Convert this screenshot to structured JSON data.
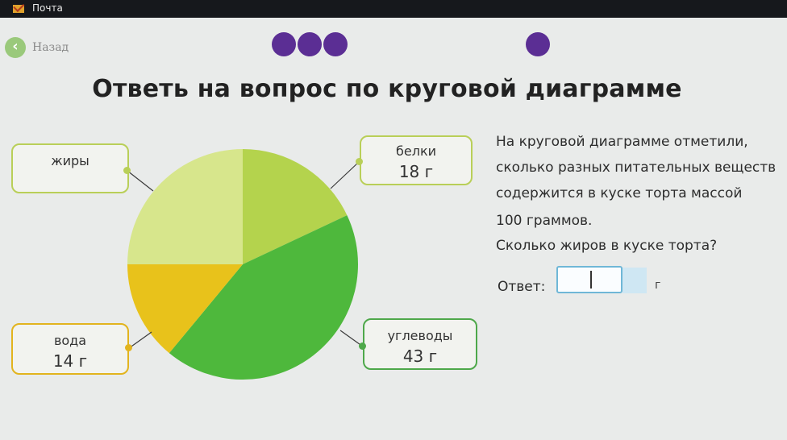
{
  "topbar": {
    "tab_label": "Почта"
  },
  "nav": {
    "back_label": "Назад"
  },
  "title": "Ответь на вопрос по круговой диаграмме",
  "chart_data": {
    "type": "pie",
    "slices": [
      {
        "label": "белки",
        "value": 18,
        "unit": "г",
        "color": "#b4d34d"
      },
      {
        "label": "углеводы",
        "value": 43,
        "unit": "г",
        "color": "#4eb83c"
      },
      {
        "label": "вода",
        "value": 14,
        "unit": "г",
        "color": "#e8c21b"
      },
      {
        "label": "жиры",
        "value": 25,
        "unit": "г",
        "color": "#d7e68c"
      }
    ]
  },
  "callouts": {
    "fats": {
      "name": "жиры",
      "value": ""
    },
    "proteins": {
      "name": "белки",
      "value": "18 г"
    },
    "carbs": {
      "name": "углеводы",
      "value": "43 г"
    },
    "water": {
      "name": "вода",
      "value": "14 г"
    }
  },
  "question": {
    "lines": [
      "На круговой диаграмме отметили,",
      "сколько разных питательных веществ",
      "содержится в куске торта массой",
      "100 граммов.",
      "Сколько жиров в куске торта?"
    ],
    "answer_label": "Ответ:",
    "answer_value": "",
    "unit": "г"
  },
  "colors": {
    "accent": "#5b2e94",
    "line": "#3a3a3a"
  }
}
